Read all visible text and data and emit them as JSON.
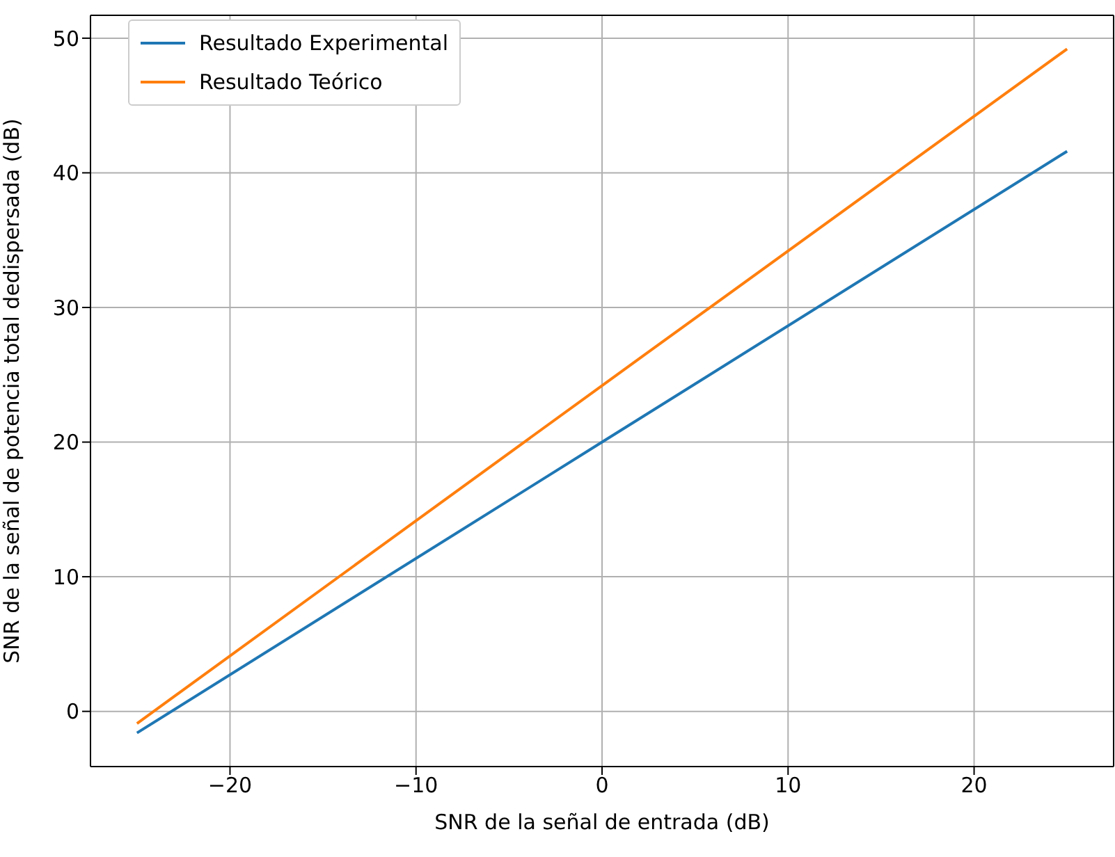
{
  "chart_data": {
    "type": "line",
    "xlabel": "SNR de la señal de entrada (dB)",
    "ylabel": "SNR de la señal de potencia total dedispersada (dB)",
    "x": [
      -25,
      0,
      25
    ],
    "series": [
      {
        "name": "Resultado Experimental",
        "color": "#1f77b4",
        "values": [
          -1.6,
          20,
          41.6
        ]
      },
      {
        "name": "Resultado Teórico",
        "color": "#ff7f0e",
        "values": [
          -0.9,
          24.2,
          49.2
        ]
      }
    ],
    "xlim": [
      -27.5,
      27.5
    ],
    "xticks": [
      {
        "value": -20,
        "label": "−20"
      },
      {
        "value": -10,
        "label": "−10"
      },
      0,
      10,
      20
    ],
    "ylim": [
      -4.1,
      51.7
    ],
    "yticks": [
      0,
      10,
      20,
      30,
      40,
      50
    ],
    "grid": true,
    "legend": "top left",
    "marker": "none",
    "line_style": "solid"
  }
}
